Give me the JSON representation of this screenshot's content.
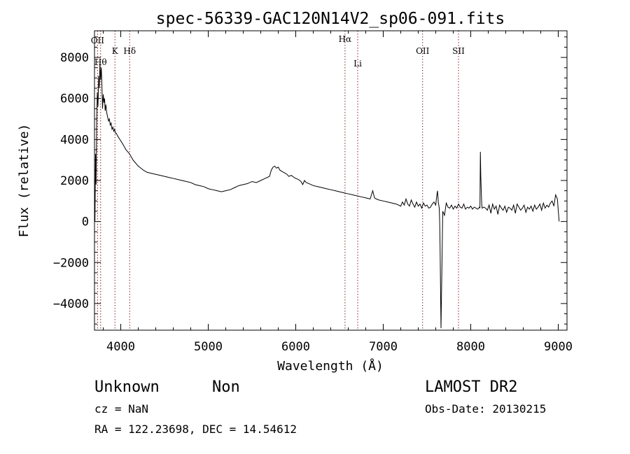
{
  "chart_data": {
    "type": "line",
    "title": "spec-56339-GAC120N14V2_sp06-091.fits",
    "xlabel": "Wavelength (Å)",
    "ylabel": "Flux (relative)",
    "xlim": [
      3700,
      9100
    ],
    "ylim": [
      -5300,
      9300
    ],
    "x_ticks": [
      4000,
      5000,
      6000,
      7000,
      8000,
      9000
    ],
    "y_ticks": [
      -4000,
      -2000,
      0,
      2000,
      4000,
      6000,
      8000
    ],
    "grid": false,
    "series": [
      {
        "x": [
          3705,
          3712,
          3718,
          3725,
          3732,
          3740,
          3748,
          3755,
          3762,
          3770,
          3778,
          3785,
          3792,
          3800,
          3808,
          3815,
          3822,
          3830,
          3840,
          3850,
          3860,
          3870,
          3880,
          3890,
          3900,
          3910,
          3920,
          3930,
          3940,
          3950,
          3960,
          3975,
          3990,
          4005,
          4020,
          4040,
          4060,
          4080,
          4100,
          4120,
          4140,
          4160,
          4180,
          4200,
          4230,
          4260,
          4300,
          4350,
          4400,
          4450,
          4500,
          4550,
          4600,
          4650,
          4700,
          4750,
          4800,
          4850,
          4900,
          4950,
          5000,
          5050,
          5100,
          5150,
          5200,
          5250,
          5300,
          5350,
          5400,
          5450,
          5500,
          5550,
          5600,
          5650,
          5700,
          5720,
          5740,
          5760,
          5780,
          5800,
          5820,
          5840,
          5860,
          5880,
          5900,
          5920,
          5950,
          5980,
          6000,
          6030,
          6060,
          6080,
          6100,
          6120,
          6150,
          6200,
          6250,
          6300,
          6350,
          6400,
          6450,
          6500,
          6550,
          6600,
          6650,
          6700,
          6750,
          6800,
          6850,
          6880,
          6900,
          6920,
          6950,
          7000,
          7050,
          7100,
          7150,
          7200,
          7220,
          7240,
          7260,
          7280,
          7300,
          7320,
          7340,
          7360,
          7380,
          7400,
          7420,
          7440,
          7460,
          7480,
          7500,
          7520,
          7540,
          7560,
          7580,
          7600,
          7610,
          7620,
          7630,
          7635,
          7640,
          7645,
          7650,
          7660,
          7680,
          7700,
          7720,
          7740,
          7760,
          7780,
          7800,
          7820,
          7840,
          7860,
          7880,
          7900,
          7920,
          7940,
          7960,
          7980,
          8000,
          8020,
          8040,
          8060,
          8080,
          8100,
          8105,
          8110,
          8115,
          8120,
          8125,
          8130,
          8150,
          8170,
          8190,
          8210,
          8230,
          8250,
          8270,
          8290,
          8310,
          8330,
          8350,
          8370,
          8390,
          8410,
          8430,
          8450,
          8470,
          8490,
          8510,
          8530,
          8550,
          8570,
          8590,
          8610,
          8630,
          8650,
          8670,
          8690,
          8710,
          8730,
          8750,
          8770,
          8790,
          8810,
          8830,
          8850,
          8870,
          8890,
          8910,
          8930,
          8950,
          8970,
          8990,
          9010
        ],
        "values": [
          0,
          3300,
          1800,
          5000,
          6300,
          5600,
          7100,
          6500,
          7700,
          6900,
          7500,
          6600,
          5500,
          6200,
          5800,
          6000,
          5400,
          5700,
          5300,
          5100,
          4900,
          5000,
          4700,
          4800,
          4500,
          4600,
          4400,
          4500,
          4300,
          4300,
          4200,
          4100,
          4000,
          3900,
          3800,
          3650,
          3500,
          3400,
          3300,
          3150,
          3000,
          2900,
          2800,
          2700,
          2600,
          2500,
          2400,
          2350,
          2300,
          2250,
          2200,
          2150,
          2100,
          2050,
          2000,
          1950,
          1900,
          1800,
          1750,
          1700,
          1600,
          1550,
          1500,
          1450,
          1500,
          1550,
          1650,
          1750,
          1800,
          1850,
          1950,
          1900,
          2000,
          2100,
          2200,
          2500,
          2650,
          2700,
          2600,
          2650,
          2500,
          2450,
          2400,
          2350,
          2300,
          2200,
          2250,
          2150,
          2100,
          2050,
          1950,
          1800,
          2000,
          1900,
          1850,
          1750,
          1700,
          1650,
          1600,
          1550,
          1500,
          1450,
          1400,
          1350,
          1300,
          1250,
          1200,
          1150,
          1100,
          1500,
          1150,
          1100,
          1050,
          1000,
          950,
          900,
          850,
          750,
          950,
          800,
          1100,
          850,
          750,
          1050,
          850,
          700,
          950,
          750,
          850,
          650,
          900,
          750,
          800,
          650,
          700,
          850,
          950,
          800,
          1200,
          1500,
          900,
          800,
          650,
          0,
          -1400,
          -5200,
          500,
          300,
          900,
          700,
          650,
          800,
          600,
          750,
          650,
          850,
          700,
          650,
          850,
          600,
          700,
          650,
          750,
          600,
          700,
          650,
          600,
          700,
          650,
          3400,
          2200,
          1500,
          900,
          650,
          700,
          650,
          550,
          800,
          400,
          850,
          600,
          750,
          350,
          800,
          650,
          550,
          750,
          450,
          700,
          650,
          550,
          800,
          400,
          850,
          700,
          550,
          650,
          800,
          450,
          700,
          600,
          750,
          500,
          800,
          600,
          700,
          850,
          550,
          900,
          650,
          800,
          700,
          900,
          1000,
          750,
          1300,
          1100,
          0
        ]
      }
    ],
    "lines": [
      {
        "x": 3735,
        "label": "OII"
      },
      {
        "x": 3770,
        "label": "Hθ"
      },
      {
        "x": 3934,
        "label": "K"
      },
      {
        "x": 4102,
        "label": "Hδ"
      },
      {
        "x": 6563,
        "label": "Hα"
      },
      {
        "x": 6708,
        "label": "Li"
      },
      {
        "x": 7450,
        "label": "OII"
      },
      {
        "x": 7860,
        "label": "SII"
      }
    ]
  },
  "footer": {
    "object_class": "Unknown",
    "subclass": "Non",
    "survey": "LAMOST DR2",
    "cz": "cz = NaN",
    "obs_date": "Obs-Date: 20130215",
    "coords": "RA = 122.23698, DEC =  14.54612"
  },
  "colors": {
    "spectrum": "#000000",
    "marker_lines": "#8b1a1a",
    "axes": "#000000"
  }
}
